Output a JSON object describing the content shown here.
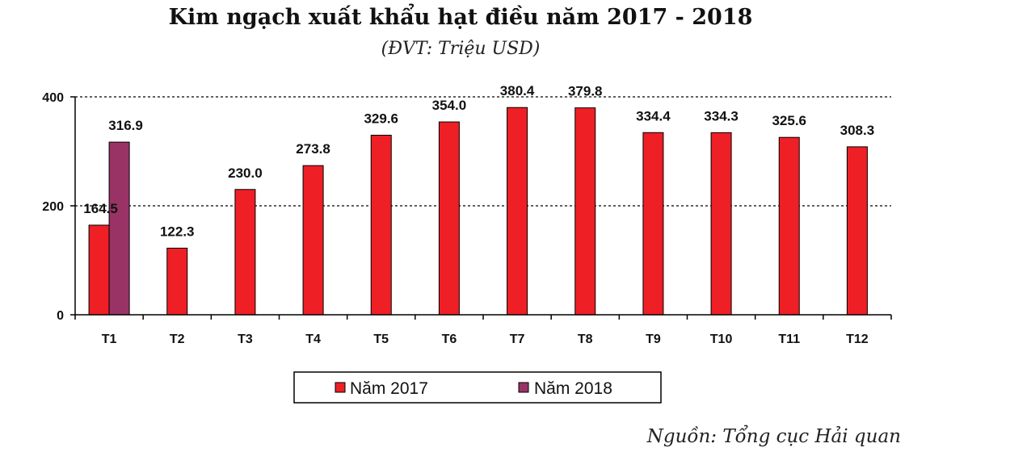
{
  "title": "Kim ngạch xuất khẩu hạt điều năm 2017 - 2018",
  "subtitle": "(ĐVT: Triệu USD)",
  "source": "Nguồn: Tổng cục Hải quan",
  "chart_data": {
    "type": "bar",
    "categories": [
      "T1",
      "T2",
      "T3",
      "T4",
      "T5",
      "T6",
      "T7",
      "T8",
      "T9",
      "T10",
      "T11",
      "T12"
    ],
    "series": [
      {
        "name": "Năm 2017",
        "color": "#ee1f25",
        "values": [
          164.5,
          122.3,
          230.0,
          273.8,
          329.6,
          354.0,
          380.4,
          379.8,
          334.4,
          334.3,
          325.6,
          308.3
        ],
        "labels": [
          "164.5",
          "122.3",
          "230.0",
          "273.8",
          "329.6",
          "354.0",
          "380.4",
          "379.8",
          "334.4",
          "334.3",
          "325.6",
          "308.3"
        ]
      },
      {
        "name": "Năm 2018",
        "color": "#993366",
        "values": [
          316.9,
          null,
          null,
          null,
          null,
          null,
          null,
          null,
          null,
          null,
          null,
          null
        ],
        "labels": [
          "316.9",
          "",
          "",
          "",
          "",
          "",
          "",
          "",
          "",
          "",
          "",
          ""
        ]
      }
    ],
    "yticks": [
      0,
      200,
      400
    ],
    "ylim": [
      0,
      400
    ],
    "grid": "dotted",
    "legend_position": "bottom"
  }
}
